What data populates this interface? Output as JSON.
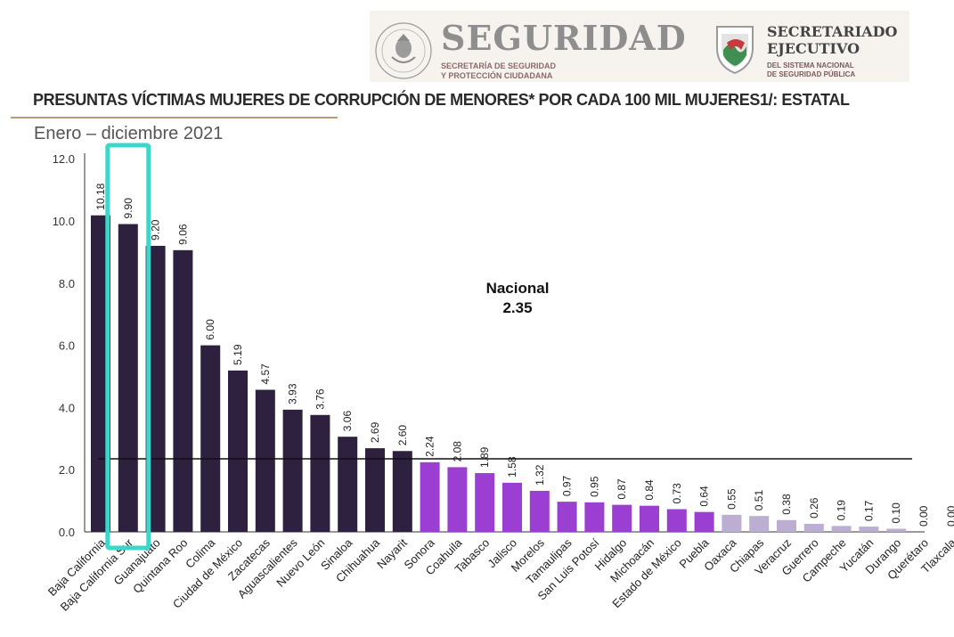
{
  "header": {
    "seguridad_title": "SEGURIDAD",
    "seguridad_sub_line1": "SECRETARÍA DE SEGURIDAD",
    "seguridad_sub_line2": "Y PROTECCIÓN CIUDADANA",
    "sesnsp_title_line1": "SECRETARIADO",
    "sesnsp_title_line2": "EJECUTIVO",
    "sesnsp_sub_line1": "DEL SISTEMA NACIONAL",
    "sesnsp_sub_line2": "DE SEGURIDAD PÚBLICA"
  },
  "chart_data": {
    "type": "bar",
    "title": "PRESUNTAS VÍCTIMAS  MUJERES DE CORRUPCIÓN DE MENORES* POR CADA 100 MIL MUJERES1/: ESTATAL",
    "subtitle": "Enero – diciembre 2021",
    "categories": [
      "Baja California",
      "Baja California Sur",
      "Guanajuato",
      "Quintana Roo",
      "Colima",
      "Ciudad de México",
      "Zacatecas",
      "Aguascalientes",
      "Nuevo León",
      "Sinaloa",
      "Chihuahua",
      "Nayarit",
      "Sonora",
      "Coahuila",
      "Tabasco",
      "Jalisco",
      "Morelos",
      "Tamaulipas",
      "San Luis Potosí",
      "Hidalgo",
      "Michoacán",
      "Estado de México",
      "Puebla",
      "Oaxaca",
      "Chiapas",
      "Veracruz",
      "Guerrero",
      "Campeche",
      "Yucatán",
      "Durango",
      "Querétaro",
      "Tlaxcala"
    ],
    "values": [
      10.18,
      9.9,
      9.2,
      9.06,
      6.0,
      5.19,
      4.57,
      3.93,
      3.76,
      3.06,
      2.69,
      2.6,
      2.24,
      2.08,
      1.89,
      1.58,
      1.32,
      0.97,
      0.95,
      0.87,
      0.84,
      0.73,
      0.64,
      0.55,
      0.51,
      0.38,
      0.26,
      0.19,
      0.17,
      0.1,
      0.0,
      0.0
    ],
    "value_labels": [
      "10.18",
      "9.90",
      "9.20",
      "9.06",
      "6.00",
      "5.19",
      "4.57",
      "3.93",
      "3.76",
      "3.06",
      "2.69",
      "2.60",
      "2.24",
      "2.08",
      "1.89",
      "1.58",
      "1.32",
      "0.97",
      "0.95",
      "0.87",
      "0.84",
      "0.73",
      "0.64",
      "0.55",
      "0.51",
      "0.38",
      "0.26",
      "0.19",
      "0.17",
      "0.10",
      "0.00",
      "0.00"
    ],
    "ylim": [
      0,
      12
    ],
    "yticks": [
      "0.0",
      "2.0",
      "4.0",
      "6.0",
      "8.0",
      "10.0",
      "12.0"
    ],
    "grid": false,
    "reference_line": {
      "value": 2.35,
      "label": "Nacional",
      "value_label": "2.35"
    },
    "highlight": {
      "category": "Baja California Sur",
      "color": "#3ed6c8"
    },
    "bar_groups": [
      {
        "from": 0,
        "to": 11,
        "color": "#2e2140"
      },
      {
        "from": 12,
        "to": 22,
        "color": "#9b3fd2"
      },
      {
        "from": 23,
        "to": 31,
        "color": "#bcaed0"
      }
    ]
  }
}
